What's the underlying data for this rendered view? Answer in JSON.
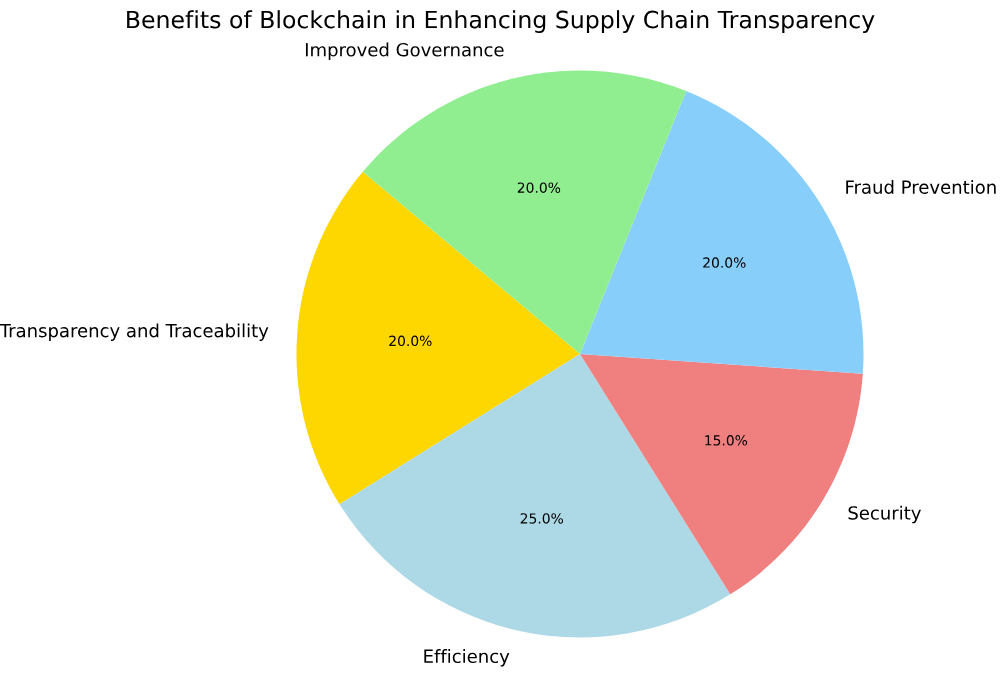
{
  "chart_data": {
    "type": "pie",
    "title": "Benefits of Blockchain in Enhancing Supply Chain Transparency",
    "categories": [
      "Transparency and Traceability",
      "Efficiency",
      "Security",
      "Fraud Prevention",
      "Improved Governance"
    ],
    "values": [
      20,
      25,
      15,
      20,
      20
    ],
    "colors": [
      "#ffd700",
      "#add8e6",
      "#f08080",
      "#87cefa",
      "#90ee90"
    ],
    "value_labels": [
      "20.0%",
      "25.0%",
      "15.0%",
      "20.0%",
      "20.0%"
    ]
  }
}
